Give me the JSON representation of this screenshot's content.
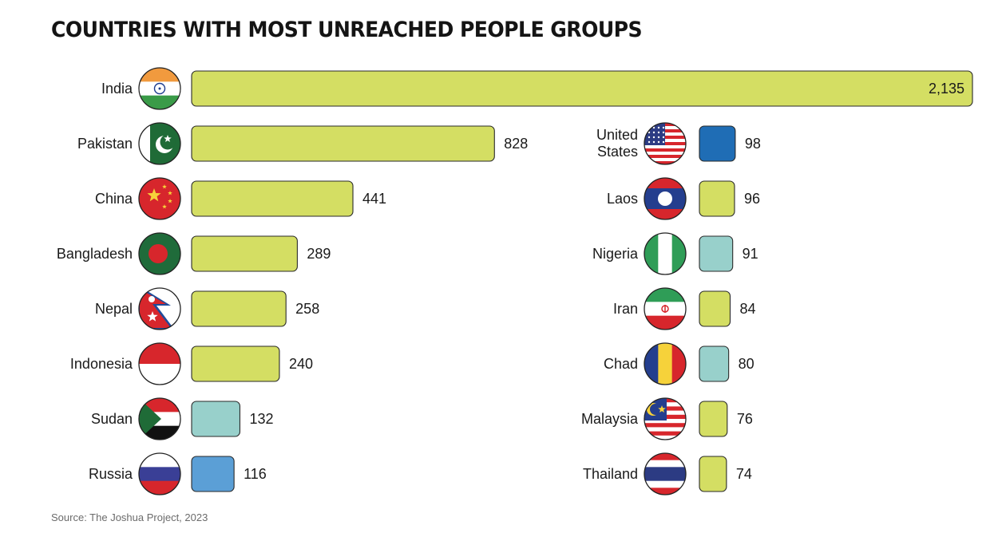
{
  "header": {
    "title": "COUNTRIES WITH MOST UNREACHED PEOPLE GROUPS"
  },
  "footer": {
    "source": "Source: The Joshua Project, 2023"
  },
  "colors": {
    "green": "#d4de63",
    "teal": "#98d0cb",
    "blue": "#5b9fd6",
    "dark_blue": "#1f6db5"
  },
  "chart_data": {
    "type": "bar",
    "orientation": "horizontal",
    "title": "COUNTRIES WITH MOST UNREACHED PEOPLE GROUPS",
    "columns": [
      {
        "bars": [
          {
            "country": "India",
            "value": 2135,
            "value_label": "2,135",
            "color": "#d4de63",
            "flag": "india-flag-icon"
          },
          {
            "country": "Pakistan",
            "value": 828,
            "value_label": "828",
            "color": "#d4de63",
            "flag": "pakistan-flag-icon"
          },
          {
            "country": "China",
            "value": 441,
            "value_label": "441",
            "color": "#d4de63",
            "flag": "china-flag-icon"
          },
          {
            "country": "Bangladesh",
            "value": 289,
            "value_label": "289",
            "color": "#d4de63",
            "flag": "bangladesh-flag-icon"
          },
          {
            "country": "Nepal",
            "value": 258,
            "value_label": "258",
            "color": "#d4de63",
            "flag": "nepal-flag-icon"
          },
          {
            "country": "Indonesia",
            "value": 240,
            "value_label": "240",
            "color": "#d4de63",
            "flag": "indonesia-flag-icon"
          },
          {
            "country": "Sudan",
            "value": 132,
            "value_label": "132",
            "color": "#98d0cb",
            "flag": "sudan-flag-icon"
          },
          {
            "country": "Russia",
            "value": 116,
            "value_label": "116",
            "color": "#5b9fd6",
            "flag": "russia-flag-icon"
          }
        ]
      },
      {
        "bars": [
          {
            "country": [
              "United",
              "States"
            ],
            "value": 98,
            "value_label": "98",
            "color": "#1f6db5",
            "flag": "usa-flag-icon"
          },
          {
            "country": "Laos",
            "value": 96,
            "value_label": "96",
            "color": "#d4de63",
            "flag": "laos-flag-icon"
          },
          {
            "country": "Nigeria",
            "value": 91,
            "value_label": "91",
            "color": "#98d0cb",
            "flag": "nigeria-flag-icon"
          },
          {
            "country": "Iran",
            "value": 84,
            "value_label": "84",
            "color": "#d4de63",
            "flag": "iran-flag-icon"
          },
          {
            "country": "Chad",
            "value": 80,
            "value_label": "80",
            "color": "#98d0cb",
            "flag": "chad-flag-icon"
          },
          {
            "country": "Malaysia",
            "value": 76,
            "value_label": "76",
            "color": "#d4de63",
            "flag": "malaysia-flag-icon"
          },
          {
            "country": "Thailand",
            "value": 74,
            "value_label": "74",
            "color": "#d4de63",
            "flag": "thailand-flag-icon"
          }
        ]
      }
    ]
  }
}
